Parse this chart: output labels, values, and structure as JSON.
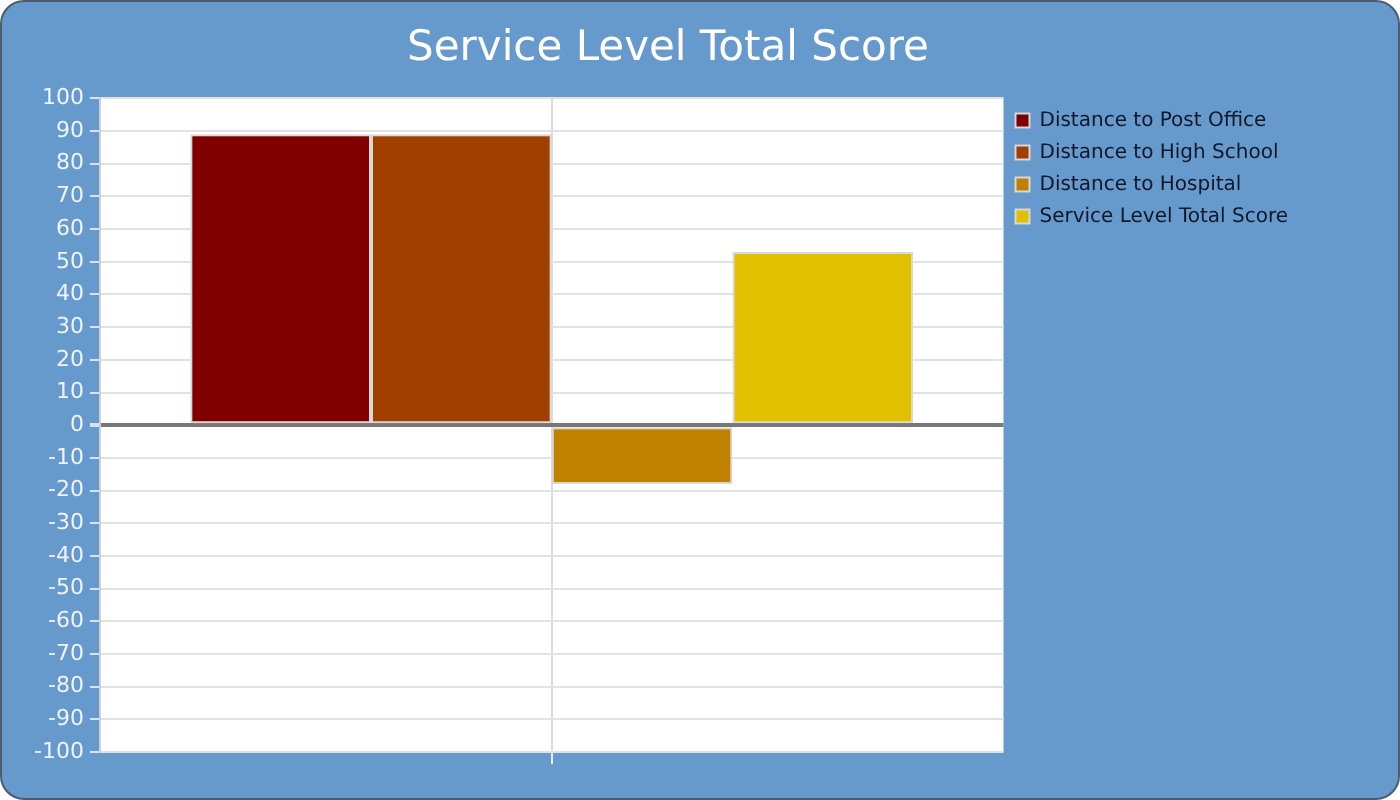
{
  "chart_data": {
    "type": "bar",
    "title": "Service Level Total Score",
    "categories": [
      null
    ],
    "series": [
      {
        "name": "Distance to Post Office",
        "color": "#800000",
        "values": [
          89
        ]
      },
      {
        "name": "Distance to High School",
        "color": "#a04000",
        "values": [
          89
        ]
      },
      {
        "name": "Distance to Hospital",
        "color": "#c08000",
        "values": [
          -18
        ]
      },
      {
        "name": "Service Level Total Score",
        "color": "#e0c000",
        "values": [
          53
        ]
      }
    ],
    "ylim": [
      -100,
      100
    ],
    "yticks": [
      -100,
      -90,
      -80,
      -70,
      -60,
      -50,
      -40,
      -30,
      -20,
      -10,
      0,
      10,
      20,
      30,
      40,
      50,
      60,
      70,
      80,
      90,
      100
    ],
    "grid": true,
    "legend": "top right",
    "tick_labels": "y"
  }
}
